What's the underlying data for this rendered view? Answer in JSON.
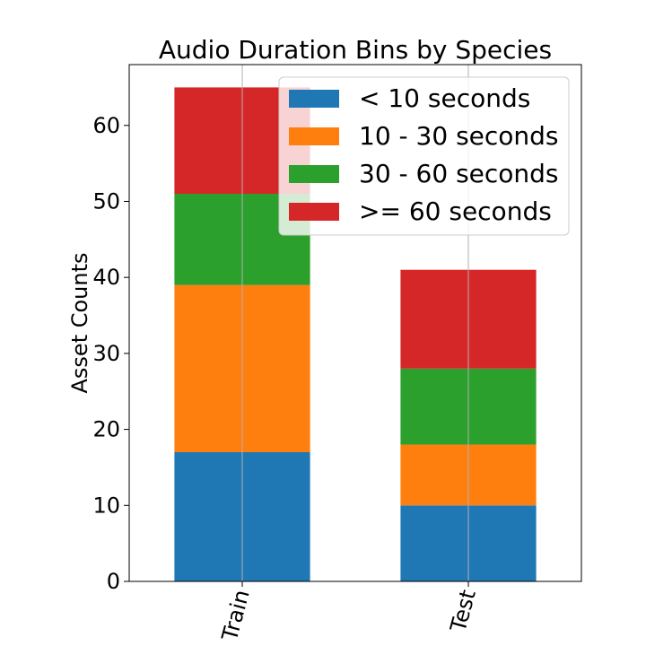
{
  "chart_data": {
    "type": "bar",
    "stacked": true,
    "title": "Audio Duration Bins by Species",
    "xlabel": "",
    "ylabel": "Asset Counts",
    "categories": [
      "Train",
      "Test"
    ],
    "series": [
      {
        "name": "< 10 seconds",
        "color": "#1f77b4",
        "values": [
          17,
          10
        ]
      },
      {
        "name": "10 - 30 seconds",
        "color": "#ff7f0e",
        "values": [
          22,
          8
        ]
      },
      {
        "name": "30 - 60 seconds",
        "color": "#2ca02c",
        "values": [
          12,
          10
        ]
      },
      {
        "name": ">= 60 seconds",
        "color": "#d62728",
        "values": [
          14,
          13
        ]
      }
    ],
    "ylim": [
      0,
      68
    ],
    "yticks": [
      0,
      10,
      20,
      30,
      40,
      50,
      60
    ],
    "xtick_rotation_deg": 75,
    "grid": "vertical lines at category centers",
    "legend_position": "top-right"
  }
}
